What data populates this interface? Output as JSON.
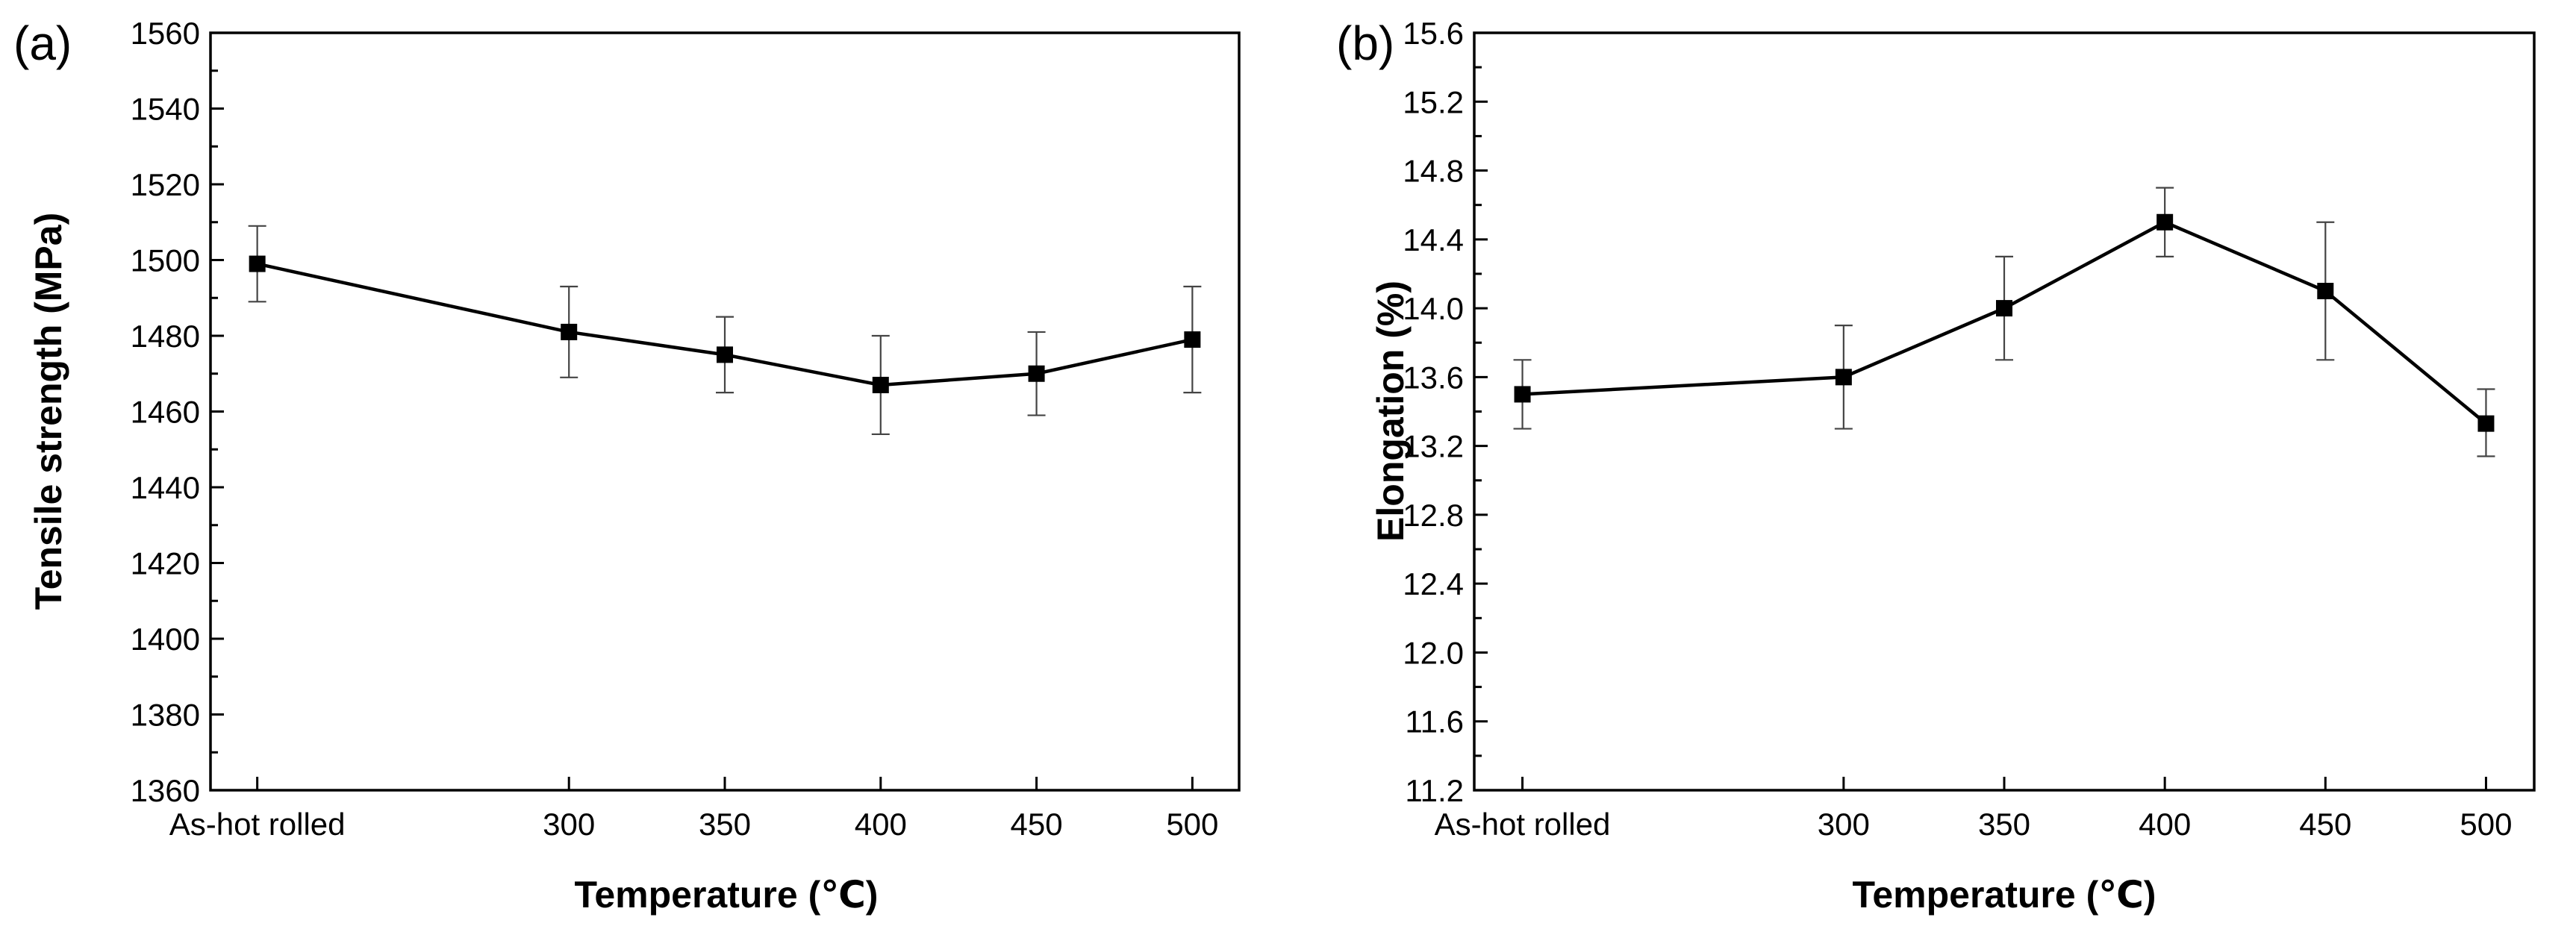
{
  "chart_data": [
    {
      "type": "line",
      "panel_label": "(a)",
      "title": "",
      "xlabel": "Temperature (℃)",
      "ylabel": "Tensile strength (MPa)",
      "categories": [
        "As-hot rolled",
        "300",
        "350",
        "400",
        "450",
        "500"
      ],
      "x_positions": [
        200,
        300,
        350,
        400,
        450,
        500
      ],
      "xlim": [
        185,
        515
      ],
      "ylim": [
        1360,
        1560
      ],
      "y_ticks": [
        1360,
        1380,
        1400,
        1420,
        1440,
        1460,
        1480,
        1500,
        1520,
        1540,
        1560
      ],
      "y_tick_labels": [
        "1360",
        "1380",
        "1400",
        "1420",
        "1440",
        "1460",
        "1480",
        "1500",
        "1520",
        "1540",
        "1560"
      ],
      "series": [
        {
          "name": "Tensile strength",
          "values": [
            1499,
            1481,
            1475,
            1467,
            1470,
            1479
          ],
          "err_low": [
            1489,
            1469,
            1465,
            1454,
            1459,
            1465
          ],
          "err_high": [
            1509,
            1493,
            1485,
            1480,
            1481,
            1493
          ]
        }
      ]
    },
    {
      "type": "line",
      "panel_label": "(b)",
      "title": "",
      "xlabel": "Temperature (℃)",
      "ylabel": "Elongation (%)",
      "categories": [
        "As-hot rolled",
        "300",
        "350",
        "400",
        "450",
        "500"
      ],
      "x_positions": [
        200,
        300,
        350,
        400,
        450,
        500
      ],
      "xlim": [
        185,
        515
      ],
      "ylim": [
        11.2,
        15.6
      ],
      "y_ticks": [
        11.2,
        11.6,
        12.0,
        12.4,
        12.8,
        13.2,
        13.6,
        14.0,
        14.4,
        14.8,
        15.2,
        15.6
      ],
      "y_tick_labels": [
        "11.2",
        "11.6",
        "12.0",
        "12.4",
        "12.8",
        "13.2",
        "13.6",
        "14.0",
        "14.4",
        "14.8",
        "15.2",
        "15.6"
      ],
      "series": [
        {
          "name": "Elongation",
          "values": [
            13.5,
            13.6,
            14.0,
            14.5,
            14.1,
            13.33
          ],
          "err_low": [
            13.3,
            13.3,
            13.7,
            14.3,
            13.7,
            13.14
          ],
          "err_high": [
            13.7,
            13.9,
            14.3,
            14.7,
            14.5,
            13.53
          ]
        }
      ]
    }
  ]
}
